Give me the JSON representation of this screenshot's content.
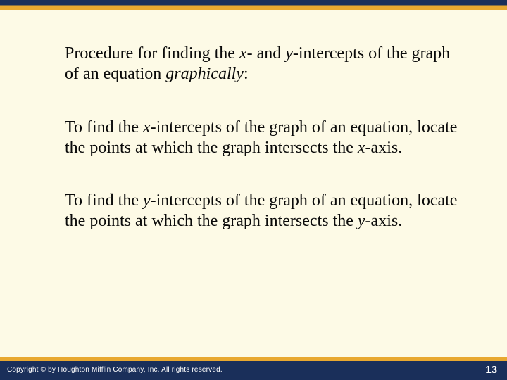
{
  "slide": {
    "heading_pre": "Procedure for finding the ",
    "heading_x": "x",
    "heading_mid1": "- and ",
    "heading_y": "y",
    "heading_mid2": "-intercepts of the graph of an equation ",
    "heading_emph": "graphically",
    "heading_post": ":",
    "p1_pre": "To find the ",
    "p1_x": "x",
    "p1_mid": "-intercepts of the graph of an equation, locate the points at which the graph intersects the ",
    "p1_axis": "x",
    "p1_post": "-axis.",
    "p2_pre": "To find the ",
    "p2_y": "y",
    "p2_mid": "-intercepts of the graph of an equation, locate the points at which the graph intersects the ",
    "p2_axis": "y",
    "p2_post": "-axis."
  },
  "footer": {
    "copyright": "Copyright © by Houghton Mifflin Company, Inc. All rights reserved.",
    "page": "13"
  },
  "style": {
    "background_color": "#fdfae6",
    "accent_color": "#e8a830",
    "bar_color": "#1a2f5a",
    "body_fontsize": 24,
    "body_color": "#0a0a0a",
    "footer_fontsize": 10,
    "footer_color": "#ffffff",
    "pagenum_fontsize": 15
  }
}
